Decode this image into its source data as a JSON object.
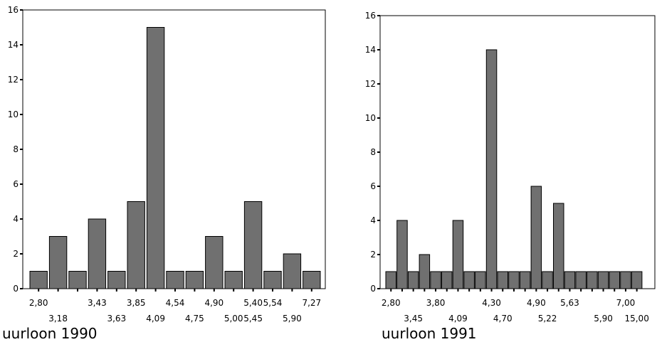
{
  "chart_data": [
    {
      "type": "bar",
      "xlabel": "uurloon 1990",
      "ylabel": "",
      "ylim": [
        0,
        16
      ],
      "yticks": [
        "0",
        "2",
        "4",
        "6",
        "8",
        "10",
        "12",
        "14",
        "16"
      ],
      "values": [
        1,
        3,
        1,
        4,
        1,
        5,
        15,
        1,
        1,
        3,
        1,
        5,
        1,
        2,
        1
      ],
      "category_labels_upper": [
        "2,80",
        "3,43",
        "3,85",
        "4,54",
        "4,90",
        "5,40",
        "5,54",
        "7,27"
      ],
      "category_labels_lower": [
        "3,18",
        "3,63",
        "4,09",
        "4,75",
        "5,00",
        "5,45",
        "5,90"
      ],
      "bar_color": "#707070"
    },
    {
      "type": "bar",
      "xlabel": "uurloon 1991",
      "ylabel": "",
      "ylim": [
        0,
        16
      ],
      "yticks": [
        "0",
        "2",
        "4",
        "6",
        "8",
        "10",
        "12",
        "14",
        "16"
      ],
      "values": [
        1,
        4,
        1,
        2,
        1,
        1,
        4,
        1,
        1,
        14,
        1,
        1,
        1,
        6,
        1,
        5,
        1,
        1,
        1,
        1,
        1,
        1,
        1
      ],
      "category_labels_upper": [
        "2,80",
        "3,80",
        "4,30",
        "4,90",
        "5,63",
        "7,00"
      ],
      "category_labels_lower": [
        "3,45",
        "4,09",
        "4,70",
        "5,22",
        "5,90",
        "15,00"
      ],
      "bar_color": "#707070"
    }
  ]
}
